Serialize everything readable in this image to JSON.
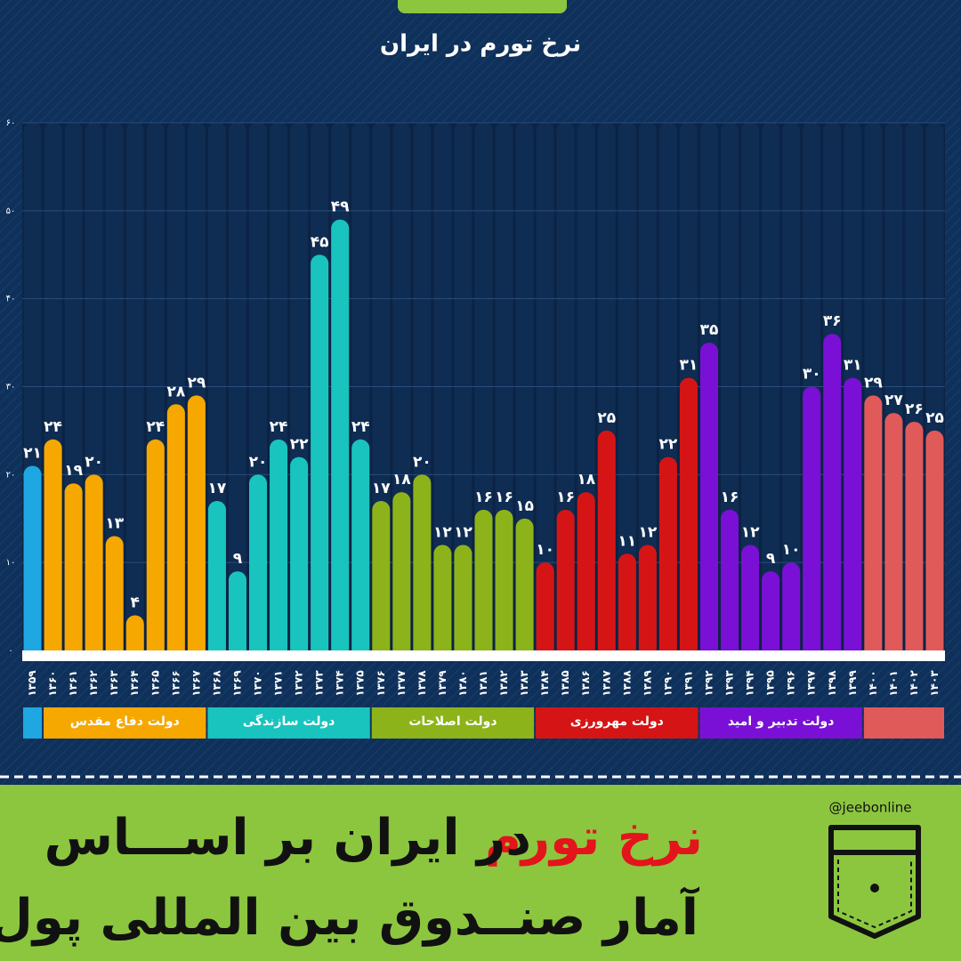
{
  "chart_data": {
    "type": "bar",
    "title": "نرخ تورم در ایران",
    "categories": [
      "۱۳۵۹",
      "۱۳۶۰",
      "۱۳۶۱",
      "۱۳۶۲",
      "۱۳۶۳",
      "۱۳۶۴",
      "۱۳۶۵",
      "۱۳۶۶",
      "۱۳۶۷",
      "۱۳۶۸",
      "۱۳۶۹",
      "۱۳۷۰",
      "۱۳۷۱",
      "۱۳۷۲",
      "۱۳۷۳",
      "۱۳۷۴",
      "۱۳۷۵",
      "۱۳۷۶",
      "۱۳۷۷",
      "۱۳۷۸",
      "۱۳۷۹",
      "۱۳۸۰",
      "۱۳۸۱",
      "۱۳۸۲",
      "۱۳۸۳",
      "۱۳۸۴",
      "۱۳۸۵",
      "۱۳۸۶",
      "۱۳۸۷",
      "۱۳۸۸",
      "۱۳۸۹",
      "۱۳۹۰",
      "۱۳۹۱",
      "۱۳۹۲",
      "۱۳۹۳",
      "۱۳۹۴",
      "۱۳۹۵",
      "۱۳۹۶",
      "۱۳۹۷",
      "۱۳۹۸",
      "۱۳۹۹",
      "۱۴۰۰",
      "۱۴۰۱",
      "۱۴۰۲",
      "۱۴۰۳"
    ],
    "series": [
      {
        "color": "#1ea7e1",
        "values": [
          21,
          null,
          null,
          null,
          null,
          null,
          null,
          null,
          null,
          null,
          null,
          null,
          null,
          null,
          null,
          null,
          null,
          null,
          null,
          null,
          null,
          null,
          null,
          null,
          null,
          null,
          null,
          null,
          null,
          null,
          null,
          null,
          null,
          null,
          null,
          null,
          null,
          null,
          null,
          null,
          null,
          null,
          null,
          null,
          null
        ],
        "value_labels": [
          "۲۱",
          null,
          null,
          null,
          null,
          null,
          null,
          null,
          null,
          null,
          null,
          null,
          null,
          null,
          null,
          null,
          null,
          null,
          null,
          null,
          null,
          null,
          null,
          null,
          null,
          null,
          null,
          null,
          null,
          null,
          null,
          null,
          null,
          null,
          null,
          null,
          null,
          null,
          null,
          null,
          null,
          null,
          null,
          null,
          null
        ]
      },
      {
        "name": "دولت دفاع مقدس",
        "color": "#f6a800",
        "values": [
          null,
          24,
          19,
          20,
          13,
          4,
          24,
          28,
          29,
          null,
          null,
          null,
          null,
          null,
          null,
          null,
          null,
          null,
          null,
          null,
          null,
          null,
          null,
          null,
          null,
          null,
          null,
          null,
          null,
          null,
          null,
          null,
          null,
          null,
          null,
          null,
          null,
          null,
          null,
          null,
          null,
          null,
          null,
          null,
          null
        ],
        "value_labels": [
          null,
          "۲۴",
          "۱۹",
          "۲۰",
          "۱۳",
          "۴",
          "۲۴",
          "۲۸",
          "۲۹",
          null,
          null,
          null,
          null,
          null,
          null,
          null,
          null,
          null,
          null,
          null,
          null,
          null,
          null,
          null,
          null,
          null,
          null,
          null,
          null,
          null,
          null,
          null,
          null,
          null,
          null,
          null,
          null,
          null,
          null,
          null,
          null,
          null,
          null,
          null,
          null
        ]
      },
      {
        "name": "دولت سازندگی",
        "color": "#19c4bf",
        "values": [
          null,
          null,
          null,
          null,
          null,
          null,
          null,
          null,
          null,
          17,
          9,
          20,
          24,
          22,
          45,
          49,
          24,
          null,
          null,
          null,
          null,
          null,
          null,
          null,
          null,
          null,
          null,
          null,
          null,
          null,
          null,
          null,
          null,
          null,
          null,
          null,
          null,
          null,
          null,
          null,
          null,
          null,
          null,
          null,
          null
        ],
        "value_labels": [
          null,
          null,
          null,
          null,
          null,
          null,
          null,
          null,
          null,
          "۱۷",
          "۹",
          "۲۰",
          "۲۴",
          "۲۲",
          "۴۵",
          "۴۹",
          "۲۴",
          null,
          null,
          null,
          null,
          null,
          null,
          null,
          null,
          null,
          null,
          null,
          null,
          null,
          null,
          null,
          null,
          null,
          null,
          null,
          null,
          null,
          null,
          null,
          null,
          null,
          null,
          null,
          null
        ]
      },
      {
        "name": "دولت اصلاحات",
        "color": "#8db31a",
        "values": [
          null,
          null,
          null,
          null,
          null,
          null,
          null,
          null,
          null,
          null,
          null,
          null,
          null,
          null,
          null,
          null,
          null,
          17,
          18,
          20,
          12,
          12,
          16,
          16,
          15,
          null,
          null,
          null,
          null,
          null,
          null,
          null,
          null,
          null,
          null,
          null,
          null,
          null,
          null,
          null,
          null,
          null,
          null,
          null,
          null
        ],
        "value_labels": [
          null,
          null,
          null,
          null,
          null,
          null,
          null,
          null,
          null,
          null,
          null,
          null,
          null,
          null,
          null,
          null,
          null,
          "۱۷",
          "۱۸",
          "۲۰",
          "۱۲",
          "۱۲",
          "۱۶",
          "۱۶",
          "۱۵",
          null,
          null,
          null,
          null,
          null,
          null,
          null,
          null,
          null,
          null,
          null,
          null,
          null,
          null,
          null,
          null,
          null,
          null,
          null,
          null
        ]
      },
      {
        "name": "دولت مهرورزی",
        "color": "#d51515",
        "values": [
          null,
          null,
          null,
          null,
          null,
          null,
          null,
          null,
          null,
          null,
          null,
          null,
          null,
          null,
          null,
          null,
          null,
          null,
          null,
          null,
          null,
          null,
          null,
          null,
          null,
          10,
          16,
          18,
          25,
          11,
          12,
          22,
          31,
          null,
          null,
          null,
          null,
          null,
          null,
          null,
          null,
          null,
          null,
          null,
          null
        ],
        "value_labels": [
          null,
          null,
          null,
          null,
          null,
          null,
          null,
          null,
          null,
          null,
          null,
          null,
          null,
          null,
          null,
          null,
          null,
          null,
          null,
          null,
          null,
          null,
          null,
          null,
          null,
          "۱۰",
          "۱۶",
          "۱۸",
          "۲۵",
          "۱۱",
          "۱۲",
          "۲۲",
          "۳۱",
          null,
          null,
          null,
          null,
          null,
          null,
          null,
          null,
          null,
          null,
          null,
          null
        ]
      },
      {
        "name": "دولت تدبیر و امید",
        "color": "#7a10d6",
        "values": [
          null,
          null,
          null,
          null,
          null,
          null,
          null,
          null,
          null,
          null,
          null,
          null,
          null,
          null,
          null,
          null,
          null,
          null,
          null,
          null,
          null,
          null,
          null,
          null,
          null,
          null,
          null,
          null,
          null,
          null,
          null,
          null,
          null,
          35,
          16,
          12,
          9,
          10,
          30,
          36,
          31,
          null,
          null,
          null,
          null
        ],
        "value_labels": [
          null,
          null,
          null,
          null,
          null,
          null,
          null,
          null,
          null,
          null,
          null,
          null,
          null,
          null,
          null,
          null,
          null,
          null,
          null,
          null,
          null,
          null,
          null,
          null,
          null,
          null,
          null,
          null,
          null,
          null,
          null,
          null,
          null,
          "۳۵",
          "۱۶",
          "۱۲",
          "۹",
          "۱۰",
          "۳۰",
          "۳۶",
          "۳۱",
          null,
          null,
          null,
          null
        ]
      },
      {
        "color": "#e05a5a",
        "values": [
          null,
          null,
          null,
          null,
          null,
          null,
          null,
          null,
          null,
          null,
          null,
          null,
          null,
          null,
          null,
          null,
          null,
          null,
          null,
          null,
          null,
          null,
          null,
          null,
          null,
          null,
          null,
          null,
          null,
          null,
          null,
          null,
          null,
          null,
          null,
          null,
          null,
          null,
          null,
          null,
          null,
          29,
          27,
          26,
          25
        ],
        "value_labels": [
          null,
          null,
          null,
          null,
          null,
          null,
          null,
          null,
          null,
          null,
          null,
          null,
          null,
          null,
          null,
          null,
          null,
          null,
          null,
          null,
          null,
          null,
          null,
          null,
          null,
          null,
          null,
          null,
          null,
          null,
          null,
          null,
          null,
          null,
          null,
          null,
          null,
          null,
          null,
          null,
          null,
          "۲۹",
          "۲۷",
          "۲۶",
          "۲۵"
        ]
      }
    ],
    "ylim": [
      0,
      60
    ],
    "yticks": [
      {
        "value": 0,
        "label": "۰"
      },
      {
        "value": 10,
        "label": "۱۰"
      },
      {
        "value": 20,
        "label": "۲۰"
      },
      {
        "value": 30,
        "label": "۳۰"
      },
      {
        "value": 40,
        "label": "۴۰"
      },
      {
        "value": 50,
        "label": "۵۰"
      },
      {
        "value": 60,
        "label": "۶۰"
      }
    ],
    "grid": true
  },
  "banner": {
    "highlight": "نرخ تورم",
    "line1": "در ایران بر اســـاس",
    "line2": "آمار صنــدوق بین المللی پول",
    "handle": "@jeebonline"
  }
}
